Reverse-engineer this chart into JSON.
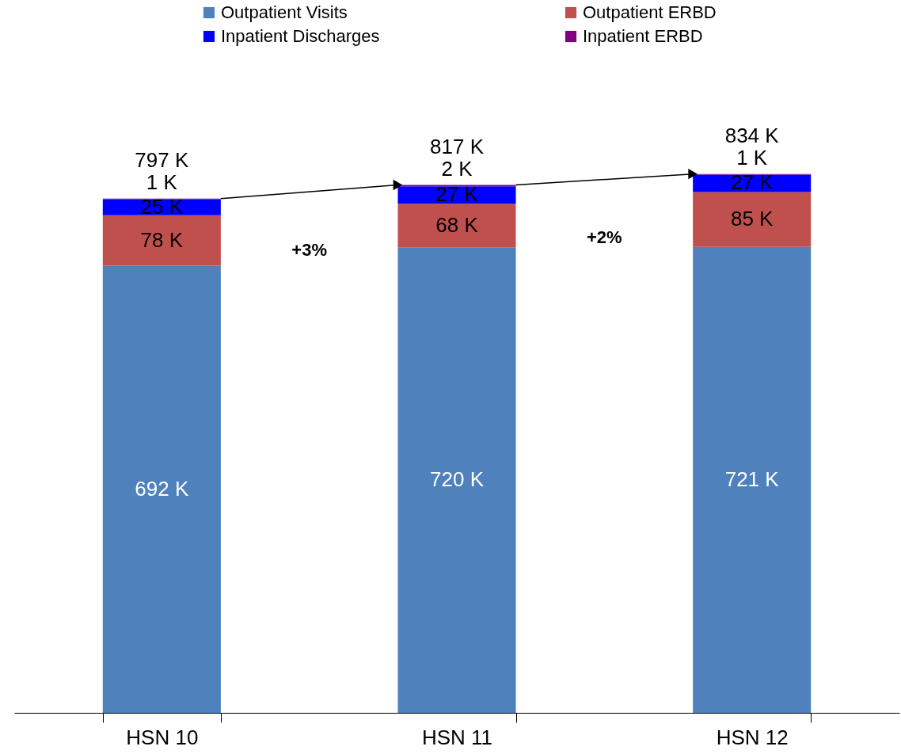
{
  "chart_data": {
    "type": "bar",
    "stacked": true,
    "categories": [
      "HSN 10",
      "HSN 11",
      "HSN 12"
    ],
    "series": [
      {
        "name": "Outpatient Visits",
        "color": "#4f81bd",
        "values": [
          692,
          720,
          721
        ],
        "value_labels": [
          "692 K",
          "720 K",
          "721 K"
        ]
      },
      {
        "name": "Outpatient ERBD",
        "color": "#c0504d",
        "values": [
          78,
          68,
          85
        ],
        "value_labels": [
          "78 K",
          "68 K",
          "85 K"
        ]
      },
      {
        "name": "Inpatient Discharges",
        "color": "#0000ff",
        "values": [
          25,
          27,
          27
        ],
        "value_labels": [
          "25 K",
          "27 K",
          "27 K"
        ]
      },
      {
        "name": "Inpatient ERBD",
        "color": "#800080",
        "values": [
          1,
          2,
          1
        ],
        "value_labels": [
          "1 K",
          "2 K",
          "1 K"
        ]
      }
    ],
    "totals": [
      "797 K",
      "817 K",
      "834 K"
    ],
    "annotations": [
      "+3%",
      "+2%"
    ],
    "legend": "top"
  }
}
